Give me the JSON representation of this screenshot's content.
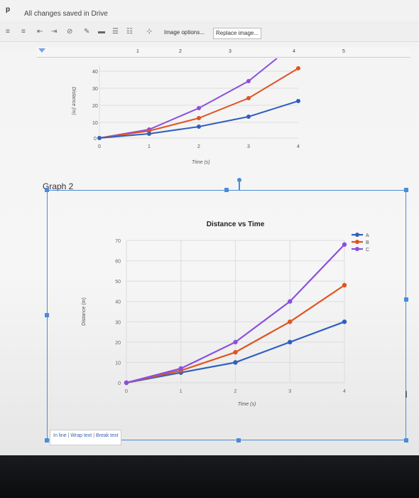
{
  "app": {
    "letter": "p",
    "save_status": "All changes saved in Drive"
  },
  "toolbar": {
    "image_options_label": "Image options...",
    "replace_image_label": "Replace image..."
  },
  "ruler": {
    "ticks": [
      "1",
      "2",
      "3",
      "4",
      "5"
    ]
  },
  "graph1": {
    "y_ticks": [
      "40",
      "30",
      "20",
      "10",
      "0"
    ],
    "x_ticks": [
      "0",
      "1",
      "2",
      "3",
      "4"
    ],
    "ylabel": "Distance (m)",
    "xlabel": "Time (s)"
  },
  "graph2": {
    "caption": "Graph 2"
  },
  "image_toolbar": {
    "in_line": "In line",
    "wrap_text": "Wrap text",
    "break_text": "Break text"
  },
  "chart_data": {
    "type": "line",
    "title": "Distance vs Time",
    "xlabel": "Time (s)",
    "ylabel": "Distance (m)",
    "x": [
      0,
      1,
      2,
      3,
      4
    ],
    "xlim": [
      0,
      4
    ],
    "ylim": [
      0,
      70
    ],
    "y_ticks": [
      0,
      10,
      20,
      30,
      40,
      50,
      60,
      70
    ],
    "x_tick_labels": [
      "0",
      "1",
      "2",
      "3",
      "4"
    ],
    "y_tick_labels": [
      "0",
      "10",
      "20",
      "30",
      "40",
      "50",
      "60",
      "70"
    ],
    "legend_position": "top-right",
    "grid": true,
    "series": [
      {
        "name": "A",
        "color": "#2f5fbf",
        "values": [
          0,
          5,
          10,
          20,
          30
        ]
      },
      {
        "name": "B",
        "color": "#e0541f",
        "values": [
          0,
          6,
          15,
          30,
          48
        ]
      },
      {
        "name": "C",
        "color": "#8a4fe0",
        "values": [
          0,
          7,
          20,
          40,
          68
        ]
      }
    ]
  }
}
